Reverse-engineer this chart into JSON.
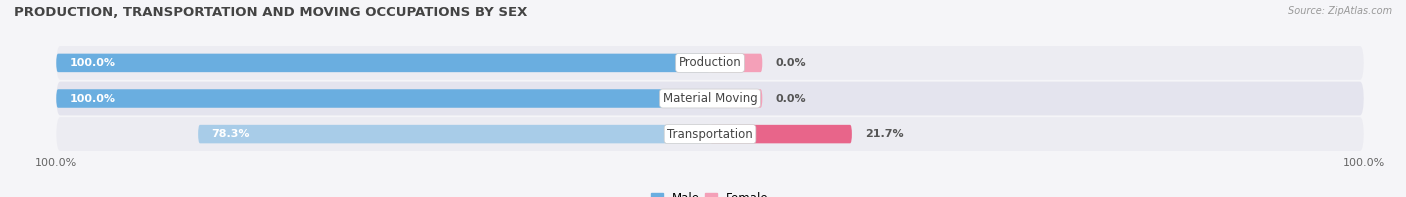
{
  "title": "PRODUCTION, TRANSPORTATION AND MOVING OCCUPATIONS BY SEX",
  "source": "Source: ZipAtlas.com",
  "categories": [
    "Production",
    "Material Moving",
    "Transportation"
  ],
  "male_values": [
    100.0,
    100.0,
    78.3
  ],
  "female_values": [
    0.0,
    0.0,
    21.7
  ],
  "male_color_full": "#6aaee0",
  "male_color_light": "#a8cce8",
  "female_color_full": "#e8658a",
  "female_color_light": "#f4a0b8",
  "row_bg_even": "#ececf2",
  "row_bg_odd": "#e4e4ee",
  "fig_bg": "#f5f5f8",
  "title_fontsize": 9.5,
  "label_fontsize": 8,
  "tick_fontsize": 8,
  "figsize": [
    14.06,
    1.97
  ],
  "dpi": 100
}
